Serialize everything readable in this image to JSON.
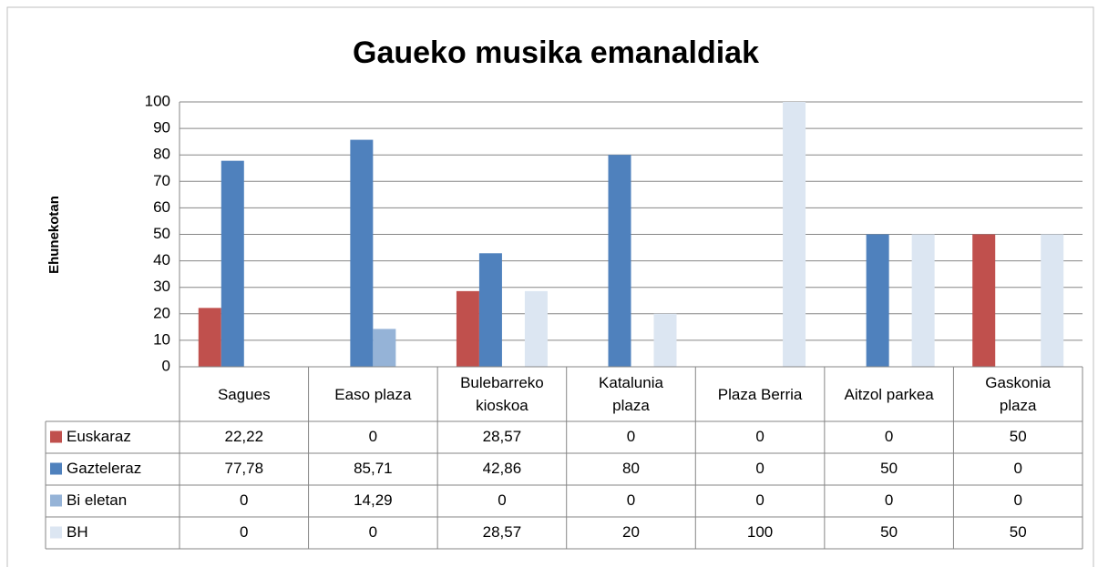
{
  "chart_data": {
    "type": "bar",
    "title": "Gaueko musika emanaldiak",
    "y_label": "Ehunekotan",
    "categories": [
      "Sagues",
      "Easo plaza",
      "Bulebarreko kioskoa",
      "Katalunia plaza",
      "Plaza Berria",
      "Aitzol parkea",
      "Gaskonia plaza"
    ],
    "series": [
      {
        "name": "Euskaraz",
        "color": "#c0504d",
        "values": [
          22.22,
          0,
          28.57,
          0,
          0,
          0,
          50
        ],
        "value_labels": [
          "22,22",
          "0",
          "28,57",
          "0",
          "0",
          "0",
          "50"
        ]
      },
      {
        "name": "Gazteleraz",
        "color": "#4f81bd",
        "values": [
          77.78,
          85.71,
          42.86,
          80,
          0,
          50,
          0
        ],
        "value_labels": [
          "77,78",
          "85,71",
          "42,86",
          "80",
          "0",
          "50",
          "0"
        ]
      },
      {
        "name": "Bi eletan",
        "color": "#95b3d7",
        "values": [
          0,
          14.29,
          0,
          0,
          0,
          0,
          0
        ],
        "value_labels": [
          "0",
          "14,29",
          "0",
          "0",
          "0",
          "0",
          "0"
        ]
      },
      {
        "name": "BH",
        "color": "#dce6f2",
        "values": [
          0,
          0,
          28.57,
          20,
          100,
          50,
          50
        ],
        "value_labels": [
          "0",
          "0",
          "28,57",
          "20",
          "100",
          "50",
          "50"
        ]
      }
    ],
    "ylim": [
      0,
      100
    ],
    "yticks": [
      0,
      10,
      20,
      30,
      40,
      50,
      60,
      70,
      80,
      90,
      100
    ],
    "grid": true
  }
}
